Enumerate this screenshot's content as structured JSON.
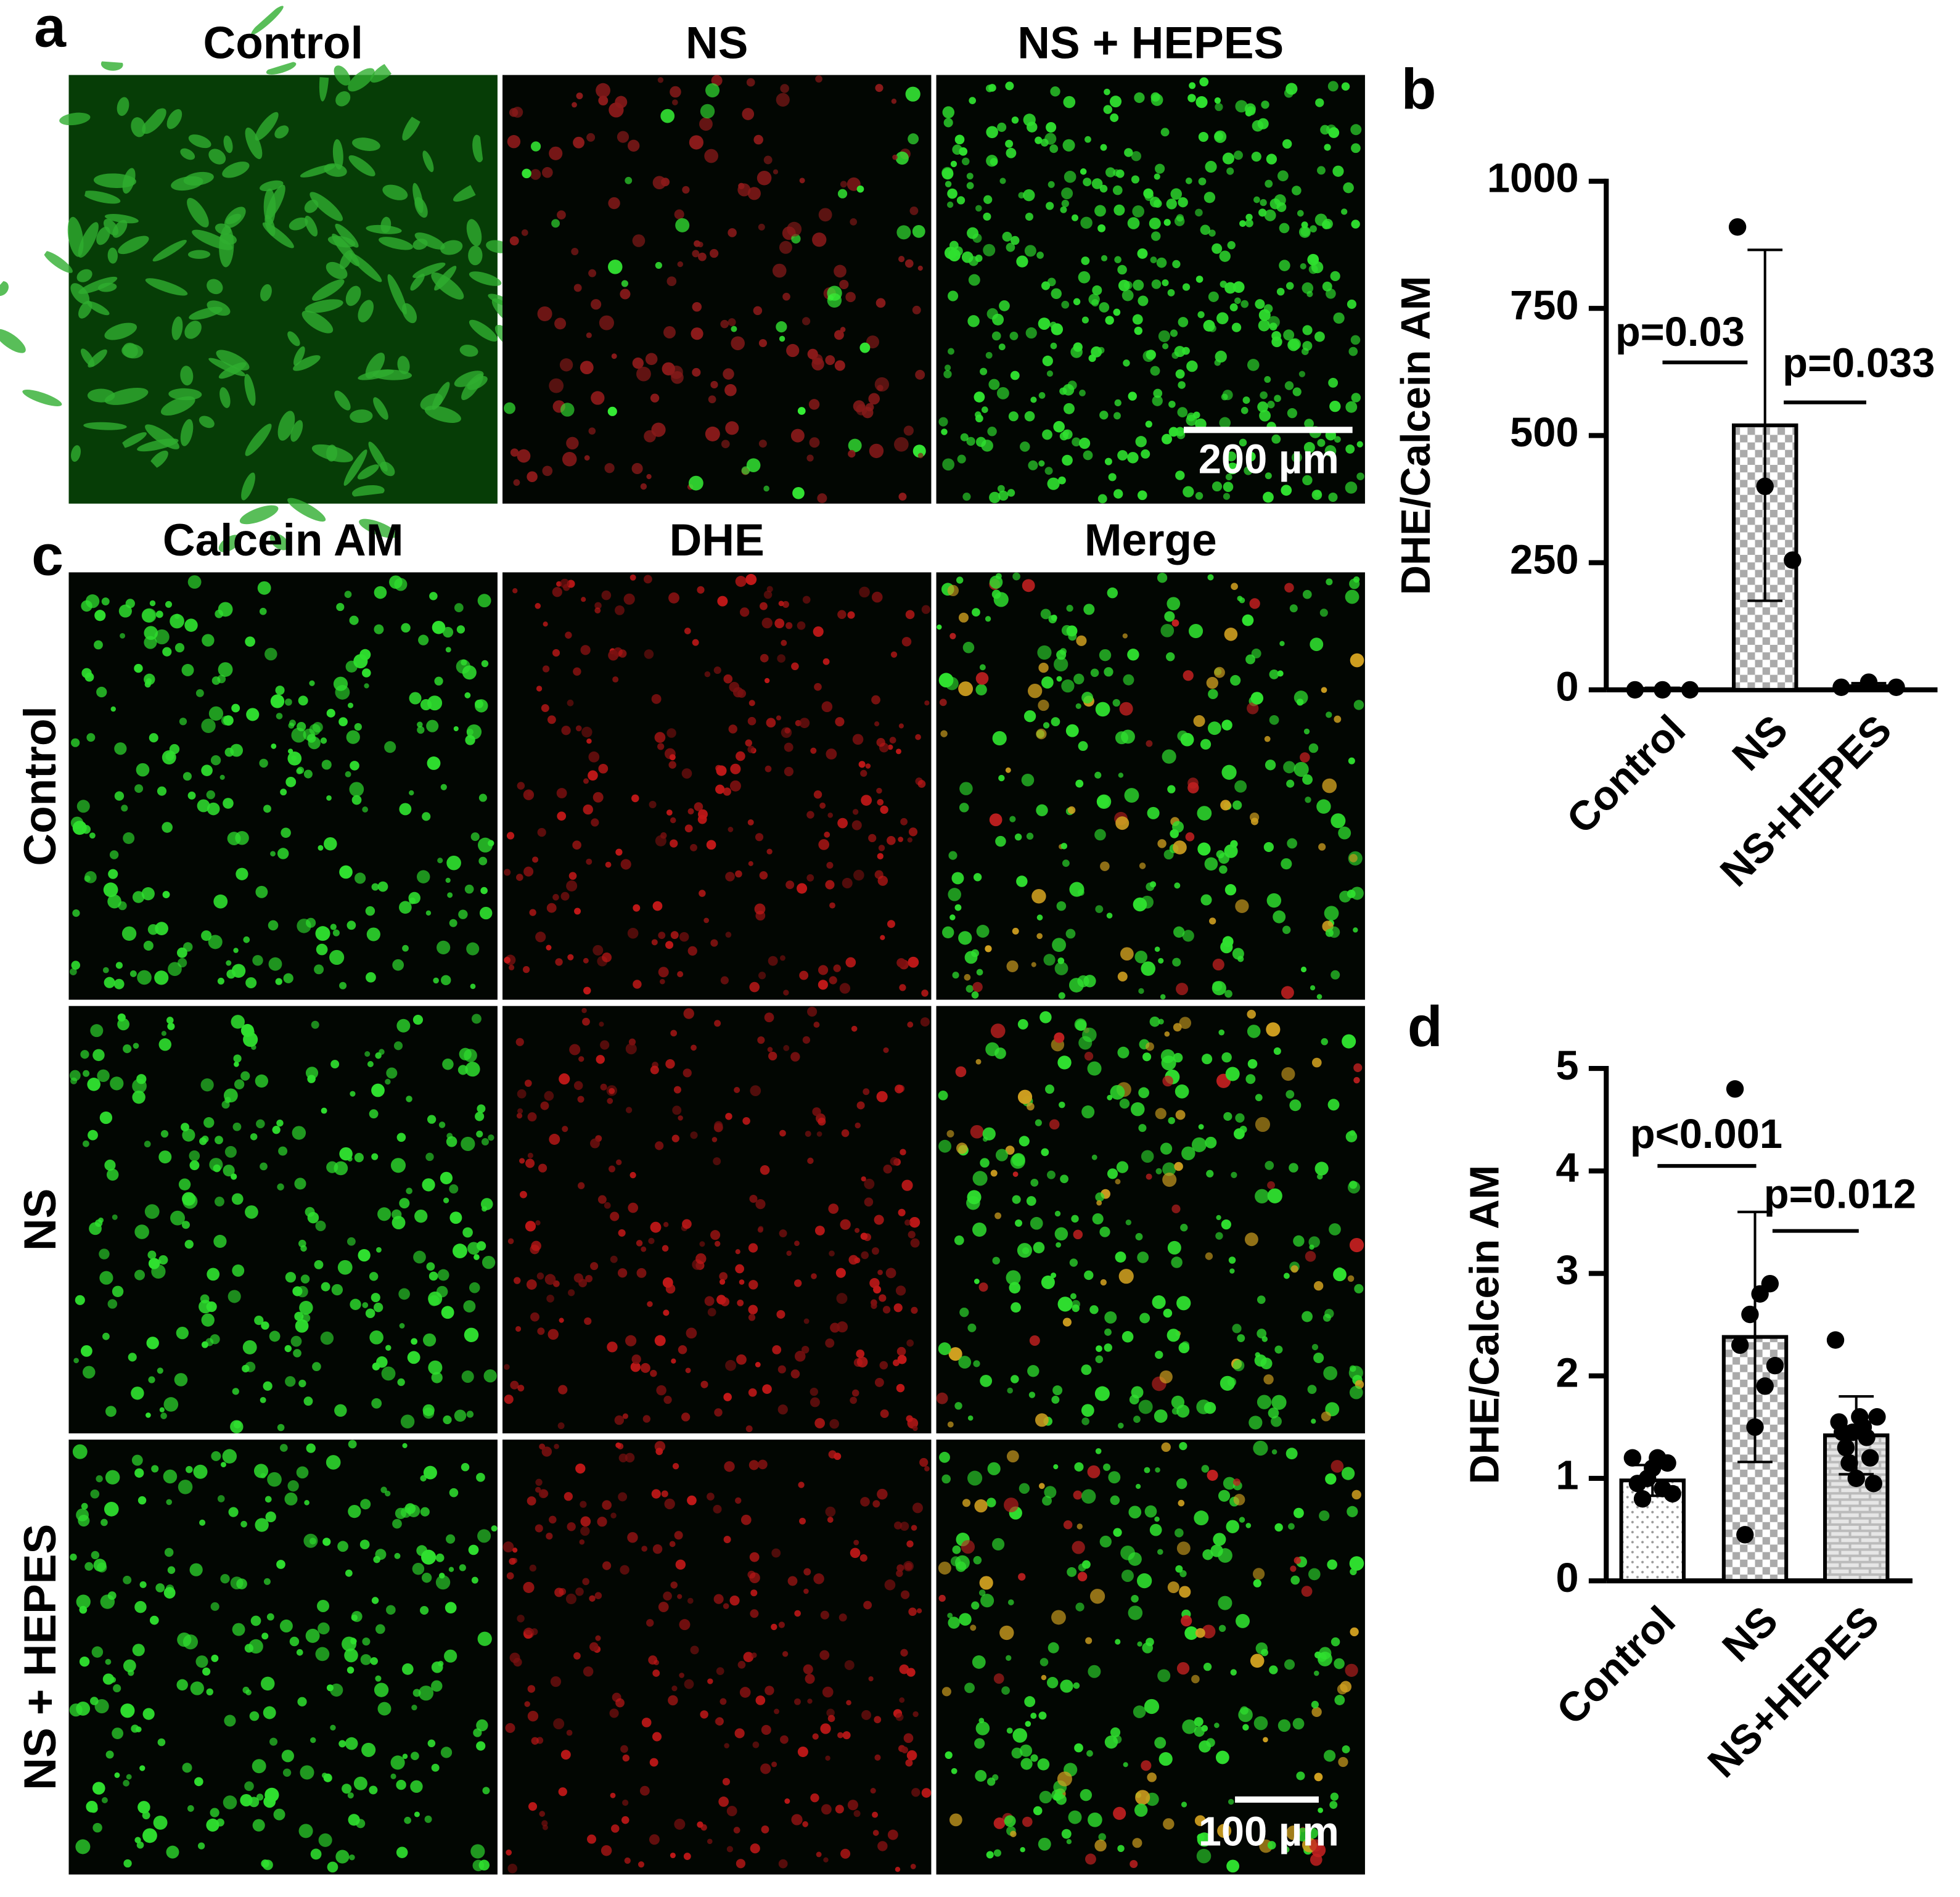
{
  "panel_labels": [
    "a",
    "b",
    "c",
    "d"
  ],
  "panel_a": {
    "titles": [
      "Control",
      "NS",
      "NS + HEPES"
    ],
    "scale_bar": "200 µm"
  },
  "panel_c": {
    "column_titles": [
      "Calcein AM",
      "DHE",
      "Merge"
    ],
    "row_titles": [
      "Control",
      "NS",
      "NS + HEPES"
    ],
    "scale_bar": "100 µm"
  },
  "chart_data": [
    {
      "type": "bar",
      "y_label": "DHE/Calcein AM",
      "categories": [
        "Control",
        "NS",
        "NS+HEPES"
      ],
      "values": [
        2,
        520,
        7
      ],
      "errors": [
        2,
        345,
        6
      ],
      "points": [
        [
          0,
          0,
          0
        ],
        [
          910,
          400,
          255
        ],
        [
          5,
          15,
          5
        ]
      ],
      "ylim": [
        0,
        1000
      ],
      "yticks": [
        0,
        250,
        500,
        750,
        1000
      ],
      "annotations": [
        "p=0.03",
        "p=0.033"
      ],
      "color": "#000000"
    },
    {
      "type": "bar",
      "y_label": "DHE/Calcein AM",
      "categories": [
        "Control",
        "NS",
        "NS+HEPES"
      ],
      "values": [
        0.98,
        2.38,
        1.42
      ],
      "errors": [
        0.15,
        1.22,
        0.38
      ],
      "points": [
        [
          1.2,
          1.15,
          1.2,
          1.0,
          0.95,
          0.85,
          0.9,
          1.1,
          0.8
        ],
        [
          4.8,
          2.9,
          2.8,
          2.6,
          2.3,
          2.1,
          1.9,
          1.5,
          0.45
        ],
        [
          2.35,
          1.6,
          1.55,
          1.5,
          1.45,
          1.4,
          1.3,
          1.2,
          1.15,
          0.95,
          1.45,
          1.6,
          1.0
        ]
      ],
      "ylim": [
        0,
        5
      ],
      "yticks": [
        0,
        1,
        2,
        3,
        4,
        5
      ],
      "annotations": [
        "p<0.001",
        "p=0.012"
      ],
      "color": "#000000"
    }
  ]
}
